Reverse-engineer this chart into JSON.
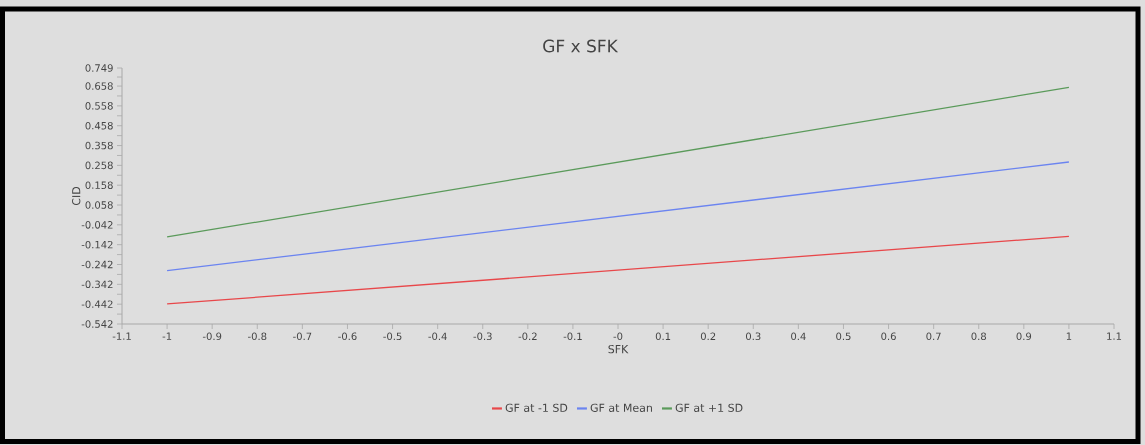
{
  "chart_data": {
    "type": "line",
    "title": "GF x SFK",
    "xlabel": "SFK",
    "ylabel": "CID",
    "x": [
      -1,
      1
    ],
    "series": [
      {
        "name": "GF at -1 SD",
        "color": "#e8474a",
        "values": [
          -0.441,
          -0.1
        ]
      },
      {
        "name": "GF at Mean",
        "color": "#6b84f0",
        "values": [
          -0.273,
          0.275
        ]
      },
      {
        "name": "GF at +1 SD",
        "color": "#5a9a5a",
        "values": [
          -0.103,
          0.651
        ]
      }
    ],
    "xlim": [
      -1.1,
      1.1
    ],
    "xticks": [
      -1.1,
      -1,
      -0.9,
      -0.8,
      -0.7,
      -0.6,
      -0.5,
      -0.4,
      -0.3,
      -0.2,
      -0.1,
      {
        "value": 0,
        "label": "-0"
      },
      0.1,
      0.2,
      0.3,
      0.4,
      0.5,
      0.6,
      0.7,
      0.8,
      0.9,
      1,
      1.1
    ],
    "ylim": [
      -0.542,
      0.749
    ],
    "yticks": [
      -0.542,
      -0.442,
      -0.342,
      -0.242,
      -0.142,
      -0.042,
      0.058,
      0.158,
      0.258,
      0.358,
      0.458,
      0.558,
      0.658,
      0.749
    ],
    "legend": "bottom"
  }
}
